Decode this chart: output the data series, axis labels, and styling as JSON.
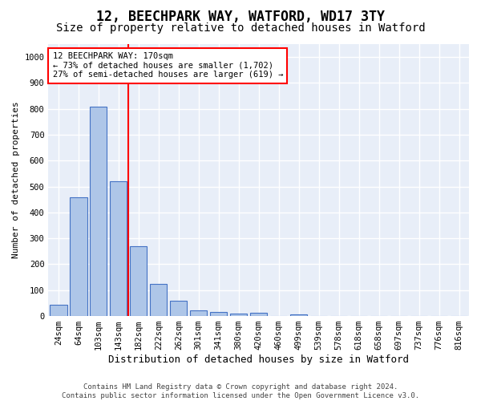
{
  "title1": "12, BEECHPARK WAY, WATFORD, WD17 3TY",
  "title2": "Size of property relative to detached houses in Watford",
  "xlabel": "Distribution of detached houses by size in Watford",
  "ylabel": "Number of detached properties",
  "footnote": "Contains HM Land Registry data © Crown copyright and database right 2024.\nContains public sector information licensed under the Open Government Licence v3.0.",
  "bin_labels": [
    "24sqm",
    "64sqm",
    "103sqm",
    "143sqm",
    "182sqm",
    "222sqm",
    "262sqm",
    "301sqm",
    "341sqm",
    "380sqm",
    "420sqm",
    "460sqm",
    "499sqm",
    "539sqm",
    "578sqm",
    "618sqm",
    "658sqm",
    "697sqm",
    "737sqm",
    "776sqm",
    "816sqm"
  ],
  "bar_values": [
    45,
    460,
    810,
    520,
    270,
    125,
    60,
    22,
    15,
    10,
    12,
    0,
    5,
    0,
    0,
    0,
    0,
    0,
    0,
    0,
    0
  ],
  "bar_color": "#aec6e8",
  "bar_edge_color": "#4472c4",
  "vline_x": 3.5,
  "vline_color": "red",
  "annotation_text": "12 BEECHPARK WAY: 170sqm\n← 73% of detached houses are smaller (1,702)\n27% of semi-detached houses are larger (619) →",
  "annotation_box_color": "white",
  "annotation_box_edge_color": "red",
  "ylim": [
    0,
    1050
  ],
  "yticks": [
    0,
    100,
    200,
    300,
    400,
    500,
    600,
    700,
    800,
    900,
    1000
  ],
  "background_color": "#e8eef8",
  "grid_color": "white",
  "title1_fontsize": 12,
  "title2_fontsize": 10,
  "xlabel_fontsize": 9,
  "ylabel_fontsize": 8,
  "tick_fontsize": 7.5,
  "footnote_fontsize": 6.5
}
